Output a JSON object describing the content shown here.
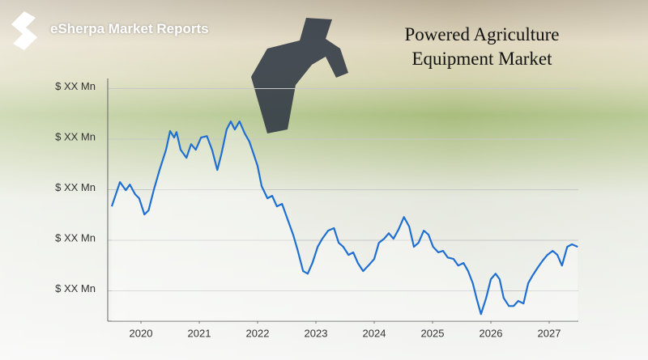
{
  "brand": "eSherpa Market Reports",
  "chart_data": {
    "type": "line",
    "title": "Powered Agriculture Equipment Market",
    "color": "#1f6fd0",
    "x": [
      2019.5,
      2019.64,
      2019.74,
      2019.81,
      2019.9,
      2019.97,
      2020.06,
      2020.13,
      2020.22,
      2020.32,
      2020.43,
      2020.5,
      2020.57,
      2020.61,
      2020.68,
      2020.78,
      2020.86,
      2020.94,
      2021.03,
      2021.13,
      2021.22,
      2021.31,
      2021.38,
      2021.47,
      2021.54,
      2021.61,
      2021.69,
      2021.78,
      2021.86,
      2021.93,
      2022.0,
      2022.07,
      2022.17,
      2022.25,
      2022.33,
      2022.42,
      2022.51,
      2022.61,
      2022.69,
      2022.78,
      2022.86,
      2022.94,
      2023.03,
      2023.11,
      2023.21,
      2023.31,
      2023.39,
      2023.47,
      2023.56,
      2023.64,
      2023.72,
      2023.81,
      2023.9,
      2024.0,
      2024.08,
      2024.17,
      2024.25,
      2024.33,
      2024.42,
      2024.51,
      2024.6,
      2024.68,
      2024.76,
      2024.85,
      2024.93,
      2025.01,
      2025.1,
      2025.18,
      2025.26,
      2025.36,
      2025.44,
      2025.53,
      2025.61,
      2025.69,
      2025.76,
      2025.83,
      2025.92,
      2026.0,
      2026.08,
      2026.15,
      2026.22,
      2026.31,
      2026.39,
      2026.47,
      2026.56,
      2026.64,
      2026.72,
      2026.81,
      2026.89,
      2026.97,
      2027.06,
      2027.14,
      2027.22,
      2027.31,
      2027.39,
      2027.49
    ],
    "values": [
      2.67,
      3.15,
      2.99,
      3.1,
      2.91,
      2.83,
      2.51,
      2.59,
      2.99,
      3.39,
      3.79,
      4.16,
      4.03,
      4.14,
      3.79,
      3.63,
      3.9,
      3.79,
      4.03,
      4.06,
      3.79,
      3.39,
      3.71,
      4.19,
      4.35,
      4.19,
      4.35,
      4.11,
      3.95,
      3.71,
      3.47,
      3.07,
      2.83,
      2.88,
      2.67,
      2.72,
      2.43,
      2.11,
      1.79,
      1.39,
      1.34,
      1.55,
      1.87,
      2.03,
      2.19,
      2.24,
      1.95,
      1.87,
      1.71,
      1.76,
      1.55,
      1.39,
      1.5,
      1.63,
      1.95,
      2.03,
      2.14,
      2.03,
      2.22,
      2.46,
      2.27,
      1.87,
      1.95,
      2.19,
      2.11,
      1.87,
      1.76,
      1.79,
      1.66,
      1.63,
      1.5,
      1.55,
      1.39,
      1.15,
      0.83,
      0.54,
      0.86,
      1.23,
      1.34,
      1.23,
      0.86,
      0.7,
      0.7,
      0.8,
      0.75,
      1.15,
      1.31,
      1.47,
      1.6,
      1.71,
      1.79,
      1.71,
      1.5,
      1.87,
      1.92,
      1.87
    ],
    "xlim": [
      2019.5,
      2027.5
    ],
    "xticks": [
      2020,
      2021,
      2022,
      2023,
      2024,
      2025,
      2026,
      2027
    ],
    "ylim": [
      0.4,
      5.2
    ],
    "yticks": [
      {
        "value": 1,
        "label": "$ XX Mn"
      },
      {
        "value": 2,
        "label": "$ XX Mn"
      },
      {
        "value": 3,
        "label": "$ XX Mn"
      },
      {
        "value": 4,
        "label": "$ XX Mn"
      },
      {
        "value": 5,
        "label": "$ XX Mn"
      }
    ],
    "grid": true
  }
}
